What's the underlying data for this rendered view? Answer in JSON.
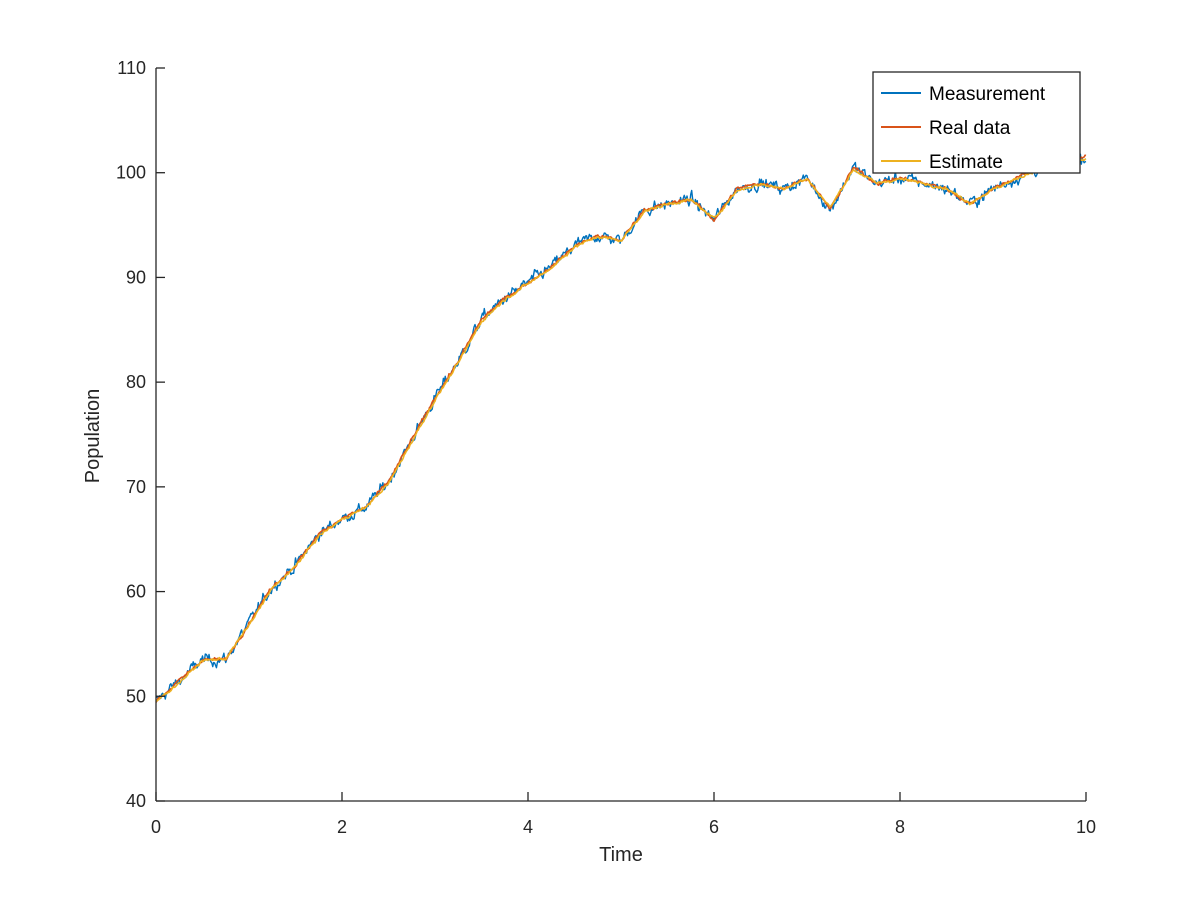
{
  "chart_data": {
    "type": "line",
    "title": "",
    "xlabel": "Time",
    "ylabel": "Population",
    "xlim": [
      0,
      10
    ],
    "ylim": [
      40,
      110
    ],
    "xticks": [
      0,
      2,
      4,
      6,
      8,
      10
    ],
    "xtick_labels": [
      "0",
      "2",
      "4",
      "6",
      "8",
      "10"
    ],
    "yticks": [
      40,
      50,
      60,
      70,
      80,
      90,
      100,
      110
    ],
    "ytick_labels": [
      "40",
      "50",
      "60",
      "70",
      "80",
      "90",
      "100",
      "110"
    ],
    "grid": false,
    "legend_position": "top-right",
    "x": [
      0,
      0.25,
      0.5,
      0.75,
      1,
      1.25,
      1.5,
      1.75,
      2,
      2.25,
      2.5,
      2.75,
      3,
      3.25,
      3.5,
      3.75,
      4,
      4.25,
      4.5,
      4.75,
      5,
      5.25,
      5.5,
      5.75,
      6,
      6.25,
      6.5,
      6.75,
      7,
      7.25,
      7.5,
      7.75,
      8,
      8.25,
      8.5,
      8.75,
      9,
      9.25,
      9.5,
      9.75,
      10
    ],
    "series": [
      {
        "name": "Measurement",
        "color": "#0072BD",
        "values": [
          49.5,
          51.5,
          53.5,
          53.5,
          57,
          60.5,
          62.5,
          65.5,
          67,
          68,
          70.5,
          74.5,
          78.5,
          82,
          86,
          88,
          89.5,
          91,
          93,
          94,
          93.5,
          96.5,
          97,
          97.5,
          95.5,
          98.5,
          99,
          98.5,
          99.5,
          96.5,
          100.5,
          99,
          99.5,
          99,
          98.5,
          97,
          98.5,
          99.5,
          100.5,
          101,
          101.5
        ]
      },
      {
        "name": "Real data",
        "color": "#D95319",
        "values": [
          49.5,
          51.5,
          53.5,
          53.5,
          57,
          60.5,
          62.5,
          65.5,
          67,
          68,
          70.5,
          74.5,
          78.5,
          82,
          86,
          88,
          89.5,
          91,
          93,
          94,
          93.5,
          96.5,
          97,
          97.5,
          95.5,
          98.5,
          99,
          98.5,
          99.5,
          96.5,
          100.5,
          99,
          99.5,
          99,
          98.5,
          97,
          98.5,
          99.5,
          100.5,
          101,
          101.5
        ]
      },
      {
        "name": "Estimate",
        "color": "#EDB120",
        "values": [
          49.5,
          51.3,
          53.4,
          53.6,
          56.8,
          60.3,
          62.4,
          65.3,
          66.9,
          68,
          70.3,
          74.3,
          78.3,
          81.8,
          85.8,
          87.9,
          89.4,
          90.9,
          92.9,
          93.9,
          93.5,
          96.3,
          97,
          97.4,
          95.6,
          98.3,
          98.9,
          98.5,
          99.4,
          96.7,
          100.3,
          99,
          99.4,
          99,
          98.5,
          97.1,
          98.4,
          99.4,
          100.4,
          100.9,
          101.3
        ]
      }
    ]
  }
}
